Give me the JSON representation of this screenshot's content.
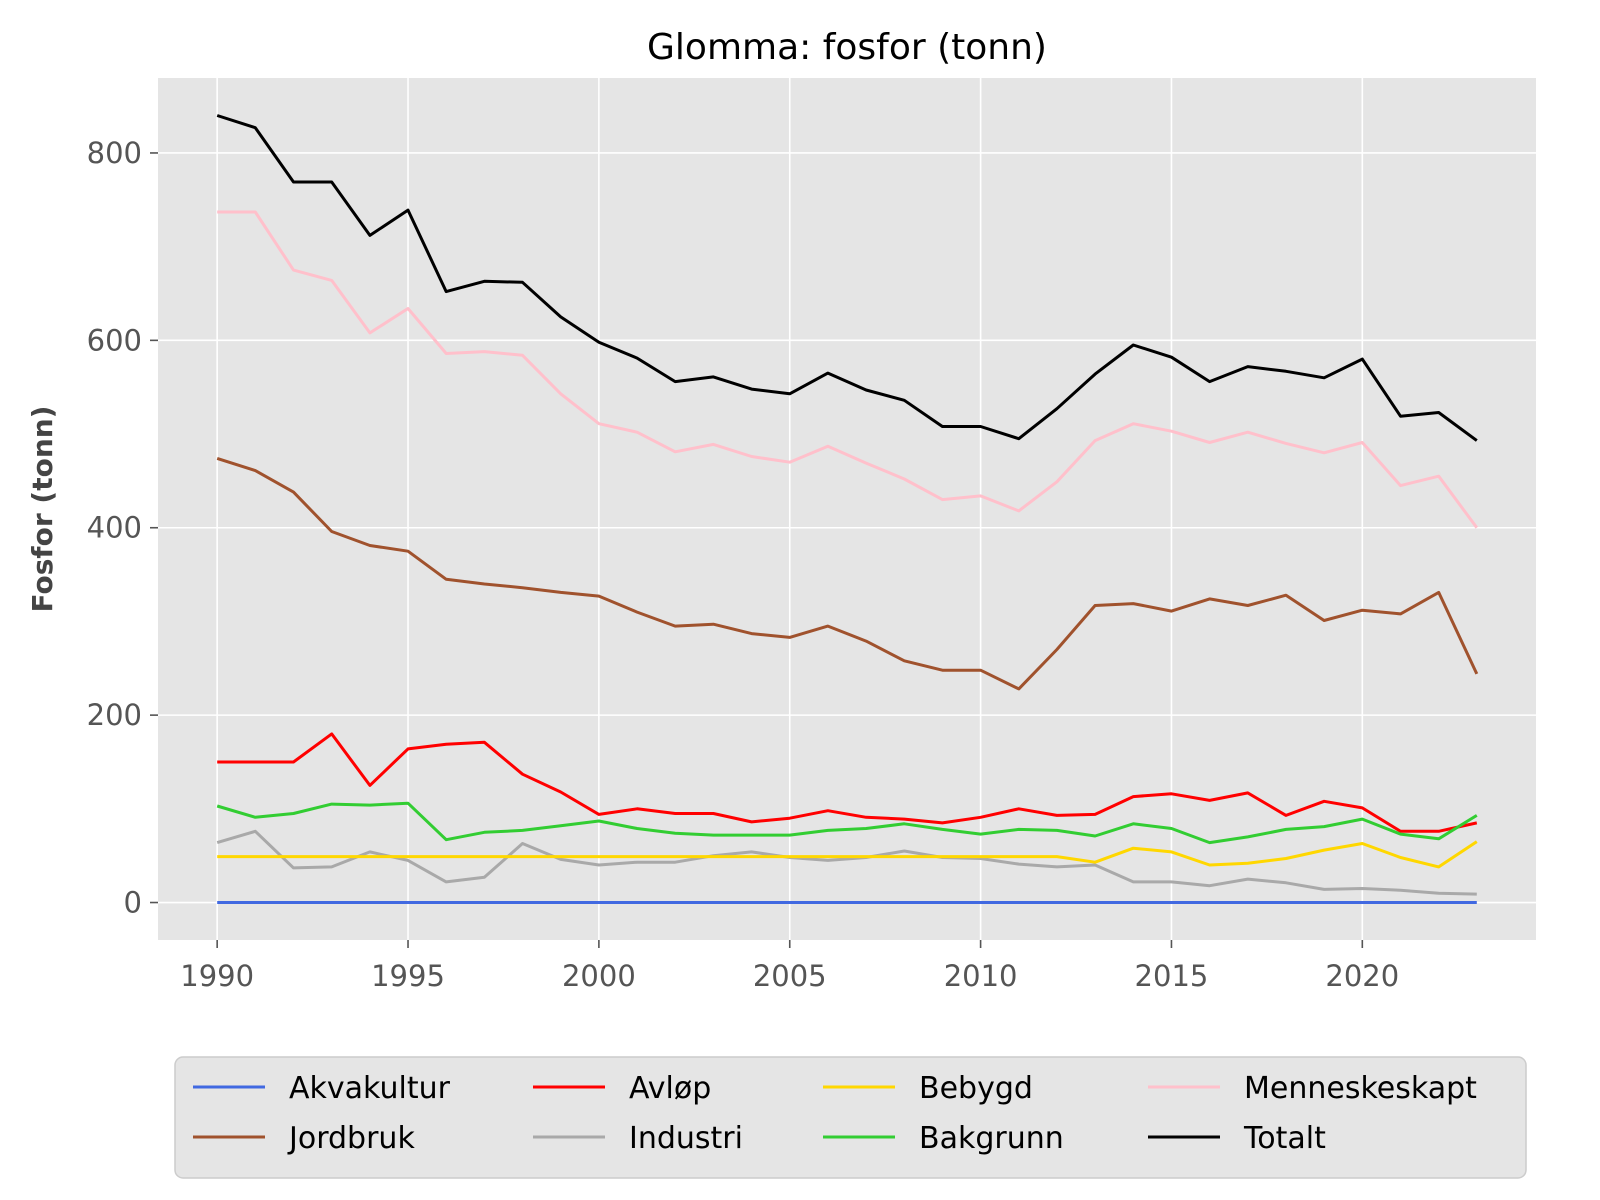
{
  "chart_data": {
    "type": "line",
    "title": "Glomma: fosfor (tonn)",
    "xlabel": "",
    "ylabel": "Fosfor (tonn)",
    "xlim": [
      1988.45,
      2024.55
    ],
    "ylim": [
      -40,
      880
    ],
    "x_ticks": [
      1990,
      1995,
      2000,
      2005,
      2010,
      2015,
      2020
    ],
    "y_ticks": [
      0,
      200,
      400,
      600,
      800
    ],
    "grid": true,
    "legend_position": "bottom, outside plot",
    "x": [
      1990,
      1991,
      1992,
      1993,
      1994,
      1995,
      1996,
      1997,
      1998,
      1999,
      2000,
      2001,
      2002,
      2003,
      2004,
      2005,
      2006,
      2007,
      2008,
      2009,
      2010,
      2011,
      2012,
      2013,
      2014,
      2015,
      2016,
      2017,
      2018,
      2019,
      2020,
      2021,
      2022,
      2023
    ],
    "series": [
      {
        "name": "Akvakultur",
        "color": "#4169e1",
        "values": [
          0,
          0,
          0,
          0,
          0,
          0,
          0,
          0,
          0,
          0,
          0,
          0,
          0,
          0,
          0,
          0,
          0,
          0,
          0,
          0,
          0,
          0,
          0,
          0,
          0,
          0,
          0,
          0,
          0,
          0,
          0,
          0,
          0,
          0
        ]
      },
      {
        "name": "Jordbruk",
        "color": "#a0522d",
        "values": [
          474,
          461,
          438,
          396,
          381,
          375,
          345,
          340,
          336,
          331,
          327,
          310,
          295,
          297,
          287,
          283,
          295,
          279,
          258,
          248,
          248,
          228,
          270,
          317,
          319,
          311,
          324,
          317,
          328,
          301,
          312,
          308,
          331,
          244
        ]
      },
      {
        "name": "Avløp",
        "color": "#ff0000",
        "values": [
          150,
          150,
          150,
          180,
          125,
          164,
          169,
          171,
          137,
          118,
          94,
          100,
          95,
          95,
          86,
          90,
          98,
          91,
          89,
          85,
          91,
          100,
          93,
          94,
          113,
          116,
          109,
          117,
          93,
          108,
          101,
          76,
          76,
          85
        ]
      },
      {
        "name": "Industri",
        "color": "#a9a9a9",
        "values": [
          64,
          76,
          37,
          38,
          54,
          45,
          22,
          27,
          63,
          46,
          40,
          43,
          43,
          50,
          54,
          48,
          45,
          48,
          55,
          48,
          47,
          41,
          38,
          40,
          22,
          22,
          18,
          25,
          21,
          14,
          15,
          13,
          10,
          9
        ]
      },
      {
        "name": "Bebygd",
        "color": "#ffd700",
        "values": [
          49,
          49,
          49,
          49,
          49,
          49,
          49,
          49,
          49,
          49,
          49,
          49,
          49,
          49,
          49,
          49,
          49,
          49,
          49,
          49,
          49,
          49,
          49,
          43,
          58,
          54,
          40,
          42,
          47,
          56,
          63,
          48,
          38,
          65
        ]
      },
      {
        "name": "Bakgrunn",
        "color": "#32cd32",
        "values": [
          103,
          91,
          95,
          105,
          104,
          106,
          67,
          75,
          77,
          82,
          87,
          79,
          74,
          72,
          72,
          72,
          77,
          79,
          84,
          78,
          73,
          78,
          77,
          71,
          84,
          79,
          64,
          70,
          78,
          81,
          89,
          73,
          68,
          93
        ]
      },
      {
        "name": "Menneskeskapt",
        "color": "#ffc0cb",
        "values": [
          737,
          737,
          675,
          664,
          608,
          634,
          586,
          588,
          584,
          543,
          511,
          502,
          481,
          489,
          476,
          470,
          487,
          469,
          452,
          430,
          434,
          418,
          449,
          493,
          511,
          503,
          491,
          502,
          490,
          480,
          491,
          445,
          455,
          400
        ]
      },
      {
        "name": "Totalt",
        "color": "#000000",
        "values": [
          840,
          827,
          769,
          769,
          712,
          739,
          652,
          663,
          662,
          625,
          598,
          581,
          556,
          561,
          548,
          543,
          565,
          547,
          536,
          508,
          508,
          495,
          527,
          564,
          595,
          582,
          556,
          572,
          567,
          560,
          580,
          519,
          523,
          493
        ]
      }
    ],
    "legend_order": [
      "Akvakultur",
      "Avløp",
      "Bebygd",
      "Menneskeskapt",
      "Jordbruk",
      "Industri",
      "Bakgrunn",
      "Totalt"
    ]
  }
}
